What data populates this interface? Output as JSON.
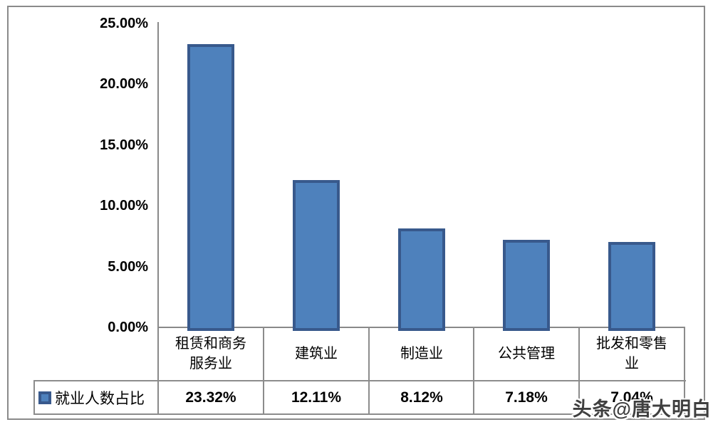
{
  "watermark": {
    "text": "头条@唐大明白"
  },
  "chart_data": {
    "type": "bar",
    "title": "",
    "xlabel": "",
    "ylabel": "",
    "categories": [
      "租赁和商务服务业",
      "建筑业",
      "制造业",
      "公共管理",
      "批发和零售业"
    ],
    "series": [
      {
        "name": "就业人数占比",
        "values": [
          23.32,
          12.11,
          8.12,
          7.18,
          7.04
        ]
      }
    ],
    "value_labels": [
      "23.32%",
      "12.11%",
      "8.12%",
      "7.18%",
      "7.04%"
    ],
    "y_ticks": [
      "25.00%",
      "20.00%",
      "15.00%",
      "10.00%",
      "5.00%",
      "0.00%"
    ],
    "ylim": [
      0,
      25
    ],
    "grid": false,
    "legend_position": "data-table-left",
    "colors": {
      "bar_fill": "#4e81bc",
      "bar_border": "#38598c",
      "axis_line": "#898989",
      "table_border": "#8c8c8c",
      "frame_border": "#8a8a8a",
      "text": "#000000",
      "watermark_text": "#3f3f3f"
    }
  }
}
